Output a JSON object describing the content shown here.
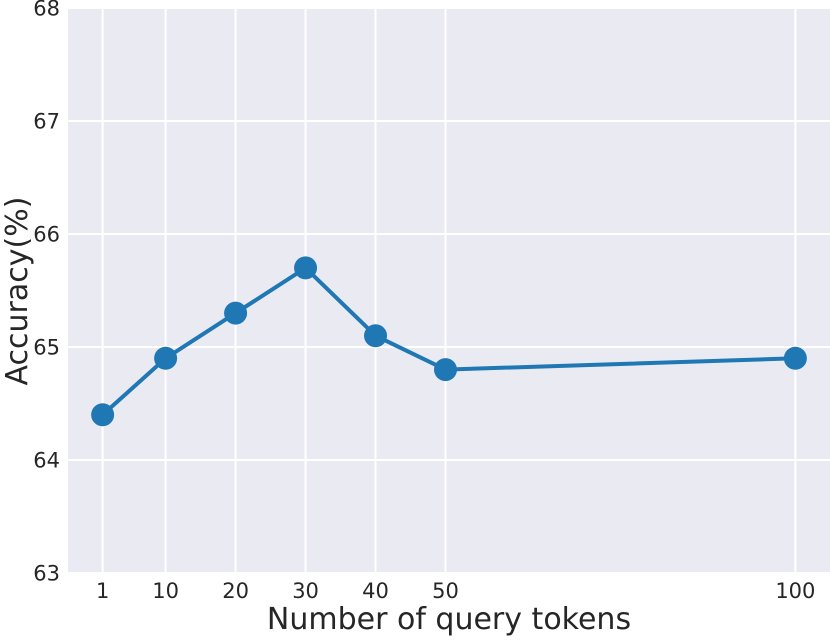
{
  "chart_data": {
    "type": "line",
    "title": "",
    "xlabel": "Number of query tokens",
    "ylabel": "Accuracy(%)",
    "x": [
      1,
      10,
      20,
      30,
      40,
      50,
      100
    ],
    "y": [
      64.4,
      64.9,
      65.3,
      65.7,
      65.1,
      64.8,
      64.9
    ],
    "xticks": [
      1,
      10,
      20,
      30,
      40,
      50,
      100
    ],
    "yticks": [
      63,
      64,
      65,
      66,
      67,
      68
    ],
    "xtick_labels": [
      "1",
      "10",
      "20",
      "30",
      "40",
      "50",
      "100"
    ],
    "ytick_labels": [
      "63",
      "64",
      "65",
      "66",
      "67",
      "68"
    ],
    "xlim": [
      -3.95,
      104.95
    ],
    "ylim": [
      63,
      68
    ],
    "grid": true,
    "legend": false,
    "style": {
      "line_color": "#1f77b4",
      "marker_color": "#1f77b4",
      "plot_background": "#eaeaf2",
      "grid_color": "#ffffff",
      "text_color": "#262626",
      "figure_background": "#ffffff"
    }
  }
}
